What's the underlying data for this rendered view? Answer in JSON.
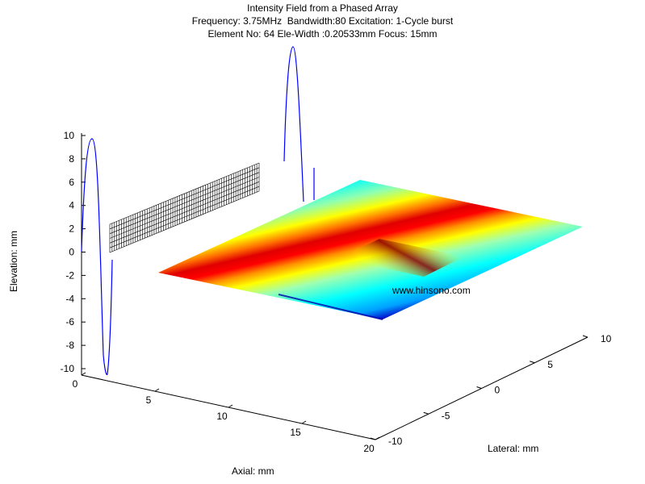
{
  "chart_data": {
    "type": "surface3d",
    "title_lines": [
      "Intensity Field from a Phased Array",
      "Frequency: 3.75MHz  Bandwidth:80 Excitation: 1-Cycle burst",
      "Element No: 64 Ele-Width :0.20533mm Focus: 15mm"
    ],
    "xlabel": "Axial: mm",
    "ylabel": "Lateral: mm",
    "zlabel": "Elevation: mm",
    "axial_ticks": [
      "0",
      "5",
      "10",
      "15",
      "20"
    ],
    "lateral_ticks": [
      "-10",
      "-5",
      "0",
      "5",
      "10"
    ],
    "elevation_ticks": [
      "10",
      "8",
      "6",
      "4",
      "2",
      "0",
      "-2",
      "-4",
      "-6",
      "-8",
      "-10"
    ],
    "focus_mm": 15,
    "element_count": 64,
    "colormap": "jet",
    "colors": {
      "intensity_high": "#ff0000",
      "intensity_mid": "#ffff00",
      "intensity_low": "#00ffff",
      "intensity_min": "#0000ff",
      "excitation_pulse": "#0000ff"
    },
    "watermark": "www.hinsono.com"
  }
}
